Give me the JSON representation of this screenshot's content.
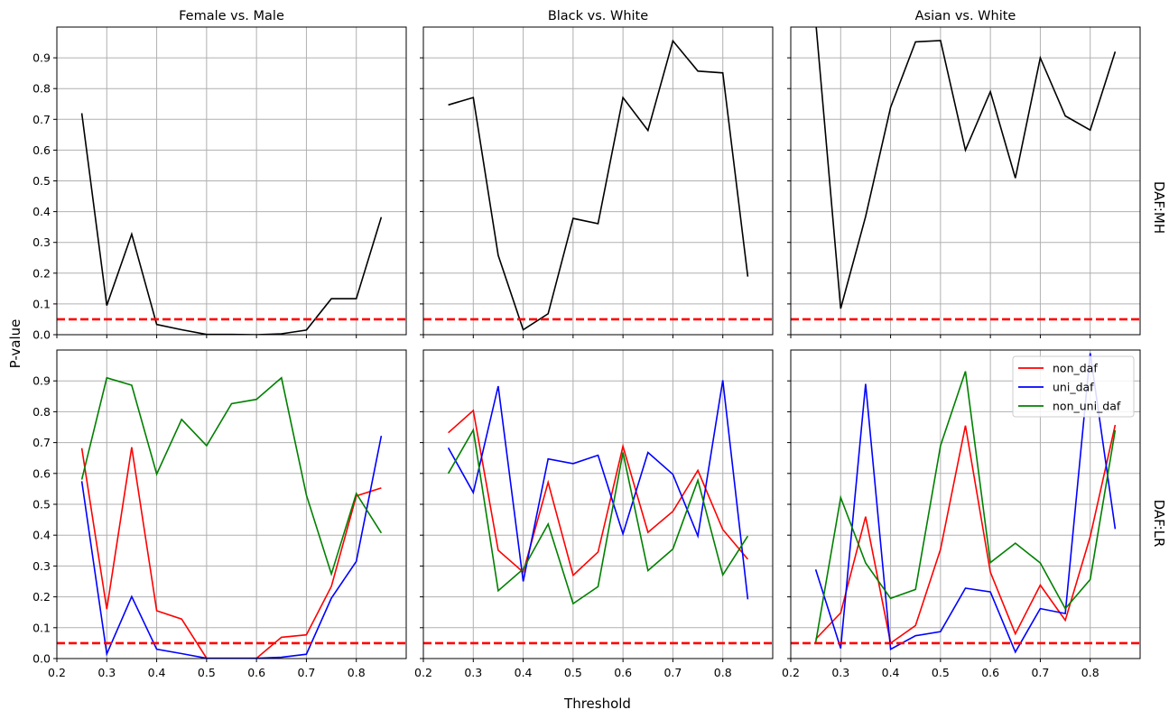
{
  "figure": {
    "ylabel": "P-value",
    "xlabel": "Threshold",
    "row_labels": [
      "DAF:MH",
      "DAF:LR"
    ],
    "col_titles": [
      "Female vs. Male",
      "Black vs. White",
      "Asian vs. White"
    ],
    "threshold_line": {
      "value": 0.05,
      "color": "#ff0000",
      "style": "dashed"
    },
    "colors": {
      "mh": "#000000",
      "non_daf": "#ff0000",
      "uni_daf": "#0000ff",
      "non_uni_daf": "#008000",
      "grid": "#b0b0b0"
    },
    "legend": {
      "position": "upper right",
      "panel": "Asian vs. White / DAF:LR",
      "entries": [
        "non_daf",
        "uni_daf",
        "non_uni_daf"
      ]
    }
  },
  "chart_data": [
    {
      "type": "line",
      "title": "Female vs. Male",
      "row": "DAF:MH",
      "xlabel": "Threshold",
      "ylabel": "P-value",
      "xlim": [
        0.2,
        0.9
      ],
      "ylim": [
        0.0,
        1.0
      ],
      "xticks": [
        "0.2",
        "0.3",
        "0.4",
        "0.5",
        "0.6",
        "0.7",
        "0.8"
      ],
      "yticks": [
        "0.0",
        "0.1",
        "0.2",
        "0.3",
        "0.4",
        "0.5",
        "0.6",
        "0.7",
        "0.8",
        "0.9"
      ],
      "x": [
        0.25,
        0.3,
        0.35,
        0.4,
        0.45,
        0.5,
        0.55,
        0.6,
        0.65,
        0.7,
        0.75,
        0.8,
        0.85
      ],
      "series": [
        {
          "name": "MH",
          "values": [
            0.72,
            0.095,
            0.327,
            0.033,
            0.016,
            0.001,
            0.001,
            0.0,
            0.003,
            0.015,
            0.117,
            0.117,
            0.382
          ]
        }
      ]
    },
    {
      "type": "line",
      "title": "Black vs. White",
      "row": "DAF:MH",
      "xlabel": "Threshold",
      "ylabel": "P-value",
      "xlim": [
        0.2,
        0.9
      ],
      "ylim": [
        0.0,
        1.0
      ],
      "x": [
        0.25,
        0.3,
        0.35,
        0.4,
        0.45,
        0.5,
        0.55,
        0.6,
        0.65,
        0.7,
        0.75,
        0.8,
        0.85
      ],
      "series": [
        {
          "name": "MH",
          "values": [
            0.747,
            0.771,
            0.258,
            0.016,
            0.068,
            0.378,
            0.361,
            0.771,
            0.664,
            0.955,
            0.857,
            0.851,
            0.189
          ]
        }
      ]
    },
    {
      "type": "line",
      "title": "Asian vs. White",
      "row": "DAF:MH",
      "xlabel": "Threshold",
      "ylabel": "P-value",
      "xlim": [
        0.2,
        0.9
      ],
      "ylim": [
        0.0,
        1.0
      ],
      "x": [
        0.25,
        0.3,
        0.35,
        0.4,
        0.45,
        0.5,
        0.55,
        0.6,
        0.65,
        0.7,
        0.75,
        0.8,
        0.85
      ],
      "series": [
        {
          "name": "MH",
          "values": [
            1.02,
            0.085,
            0.384,
            0.739,
            0.952,
            0.956,
            0.6,
            0.79,
            0.509,
            0.9,
            0.711,
            0.665,
            0.92
          ]
        }
      ]
    },
    {
      "type": "line",
      "title": "Female vs. Male",
      "row": "DAF:LR",
      "xlabel": "Threshold",
      "ylabel": "P-value",
      "xlim": [
        0.2,
        0.9
      ],
      "ylim": [
        0.0,
        1.0
      ],
      "x": [
        0.25,
        0.3,
        0.35,
        0.4,
        0.45,
        0.5,
        0.55,
        0.6,
        0.65,
        0.7,
        0.75,
        0.8,
        0.85
      ],
      "series": [
        {
          "name": "non_daf",
          "values": [
            0.682,
            0.16,
            0.685,
            0.155,
            0.128,
            0.001,
            0.001,
            0.001,
            0.069,
            0.077,
            0.234,
            0.527,
            0.553
          ]
        },
        {
          "name": "uni_daf",
          "values": [
            0.575,
            0.015,
            0.201,
            0.03,
            0.016,
            0.001,
            0.001,
            0.001,
            0.004,
            0.014,
            0.196,
            0.315,
            0.722
          ]
        },
        {
          "name": "non_uni_daf",
          "values": [
            0.58,
            0.91,
            0.886,
            0.598,
            0.775,
            0.69,
            0.826,
            0.84,
            0.91,
            0.53,
            0.274,
            0.535,
            0.407
          ]
        }
      ]
    },
    {
      "type": "line",
      "title": "Black vs. White",
      "row": "DAF:LR",
      "xlabel": "Threshold",
      "ylabel": "P-value",
      "xlim": [
        0.2,
        0.9
      ],
      "ylim": [
        0.0,
        1.0
      ],
      "x": [
        0.25,
        0.3,
        0.35,
        0.4,
        0.45,
        0.5,
        0.55,
        0.6,
        0.65,
        0.7,
        0.75,
        0.8,
        0.85
      ],
      "series": [
        {
          "name": "non_daf",
          "values": [
            0.732,
            0.804,
            0.351,
            0.28,
            0.571,
            0.27,
            0.345,
            0.688,
            0.409,
            0.477,
            0.61,
            0.418,
            0.322
          ]
        },
        {
          "name": "uni_daf",
          "values": [
            0.683,
            0.538,
            0.883,
            0.25,
            0.647,
            0.632,
            0.659,
            0.404,
            0.668,
            0.597,
            0.397,
            0.902,
            0.192
          ]
        },
        {
          "name": "non_uni_daf",
          "values": [
            0.6,
            0.741,
            0.22,
            0.29,
            0.436,
            0.178,
            0.233,
            0.668,
            0.285,
            0.355,
            0.578,
            0.271,
            0.397
          ]
        }
      ]
    },
    {
      "type": "line",
      "title": "Asian vs. White",
      "row": "DAF:LR",
      "xlabel": "Threshold",
      "ylabel": "P-value",
      "xlim": [
        0.2,
        0.9
      ],
      "ylim": [
        0.0,
        1.0
      ],
      "x": [
        0.25,
        0.3,
        0.35,
        0.4,
        0.45,
        0.5,
        0.55,
        0.6,
        0.65,
        0.7,
        0.75,
        0.8,
        0.85
      ],
      "series": [
        {
          "name": "non_daf",
          "values": [
            0.063,
            0.148,
            0.46,
            0.05,
            0.107,
            0.354,
            0.755,
            0.28,
            0.08,
            0.238,
            0.124,
            0.395,
            0.757
          ]
        },
        {
          "name": "uni_daf",
          "values": [
            0.289,
            0.033,
            0.89,
            0.03,
            0.074,
            0.087,
            0.228,
            0.216,
            0.021,
            0.162,
            0.146,
            0.99,
            0.42
          ]
        },
        {
          "name": "non_uni_daf",
          "values": [
            0.052,
            0.522,
            0.31,
            0.195,
            0.224,
            0.69,
            0.931,
            0.311,
            0.374,
            0.31,
            0.162,
            0.256,
            0.74
          ]
        }
      ]
    }
  ]
}
